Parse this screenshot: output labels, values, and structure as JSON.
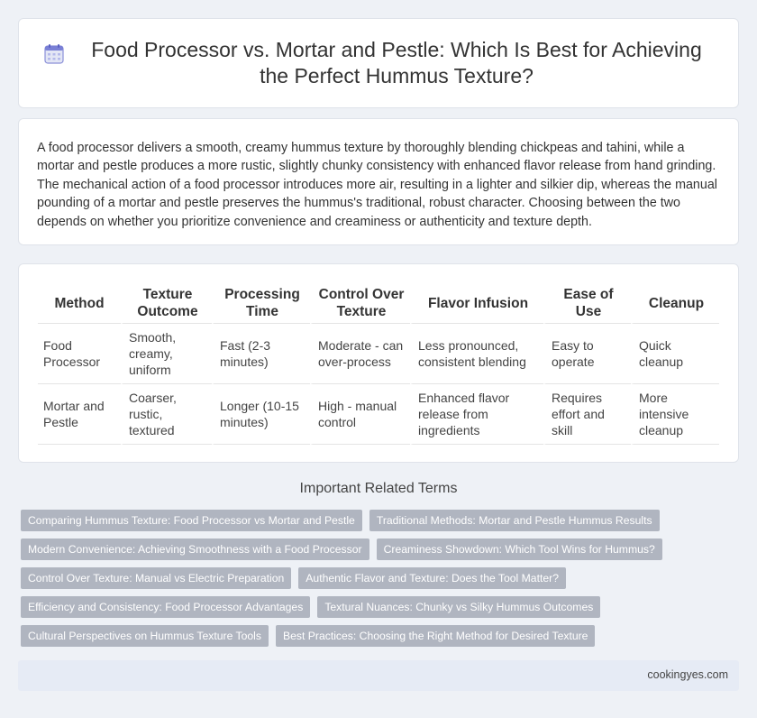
{
  "header": {
    "title": "Food Processor vs. Mortar and Pestle: Which Is Best for Achieving the Perfect Hummus Texture?",
    "icon": "calendar-icon"
  },
  "intro": {
    "text": "A food processor delivers a smooth, creamy hummus texture by thoroughly blending chickpeas and tahini, while a mortar and pestle produces a more rustic, slightly chunky consistency with enhanced flavor release from hand grinding. The mechanical action of a food processor introduces more air, resulting in a lighter and silkier dip, whereas the manual pounding of a mortar and pestle preserves the hummus's traditional, robust character. Choosing between the two depends on whether you prioritize convenience and creaminess or authenticity and texture depth."
  },
  "table": {
    "headers": [
      "Method",
      "Texture Outcome",
      "Processing Time",
      "Control Over Texture",
      "Flavor Infusion",
      "Ease of Use",
      "Cleanup"
    ],
    "rows": [
      [
        "Food Processor",
        "Smooth, creamy, uniform",
        "Fast (2-3 minutes)",
        "Moderate - can over-process",
        "Less pronounced, consistent blending",
        "Easy to operate",
        "Quick cleanup"
      ],
      [
        "Mortar and Pestle",
        "Coarser, rustic, textured",
        "Longer (10-15 minutes)",
        "High - manual control",
        "Enhanced flavor release from ingredients",
        "Requires effort and skill",
        "More intensive cleanup"
      ]
    ]
  },
  "related": {
    "heading": "Important Related Terms",
    "rows": [
      [
        "Comparing Hummus Texture: Food Processor vs Mortar and Pestle",
        "Traditional Methods: Mortar and Pestle Hummus Results"
      ],
      [
        "Modern Convenience: Achieving Smoothness with a Food Processor",
        "Creaminess Showdown: Which Tool Wins for Hummus?"
      ],
      [
        "Control Over Texture: Manual vs Electric Preparation",
        "Authentic Flavor and Texture: Does the Tool Matter?"
      ],
      [
        "Efficiency and Consistency: Food Processor Advantages",
        "Textural Nuances: Chunky vs Silky Hummus Outcomes"
      ],
      [
        "Cultural Perspectives on Hummus Texture Tools",
        "Best Practices: Choosing the Right Method for Desired Texture"
      ]
    ]
  },
  "footer": {
    "site": "cookingyes.com"
  }
}
